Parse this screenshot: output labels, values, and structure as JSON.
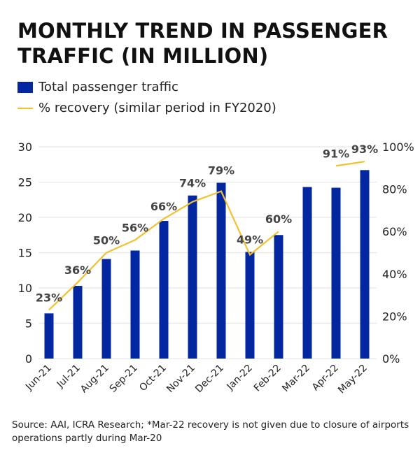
{
  "chart_data": {
    "type": "bar+line",
    "title": "MONTHLY TREND IN PASSENGER TRAFFIC (IN MILLION)",
    "categories": [
      "Jun-21",
      "Jul-21",
      "Aug-21",
      "Sep-21",
      "Oct-21",
      "Nov-21",
      "Dec-21",
      "Jan-22",
      "Feb-22",
      "Mar-22",
      "Apr-22",
      "May-22"
    ],
    "series": [
      {
        "name": "Total passenger traffic",
        "type": "bar",
        "axis": "left",
        "color": "#0327a0",
        "values": [
          6.4,
          10.3,
          14.1,
          15.3,
          19.5,
          23.1,
          24.9,
          15.1,
          17.5,
          24.3,
          24.2,
          26.7
        ]
      },
      {
        "name": "% recovery (similar period in FY2020)",
        "type": "line",
        "axis": "right",
        "color": "#f2c12e",
        "values": [
          23,
          36,
          50,
          56,
          66,
          74,
          79,
          49,
          60,
          null,
          91,
          93
        ],
        "labels": [
          "23%",
          "36%",
          "50%",
          "56%",
          "66%",
          "74%",
          "79%",
          "49%",
          "60%",
          "",
          "91%",
          "93%"
        ]
      }
    ],
    "y_left": {
      "range": [
        0,
        30
      ],
      "ticks": [
        "0",
        "5",
        "10",
        "15",
        "20",
        "25",
        "30"
      ]
    },
    "y_right": {
      "range": [
        0,
        100
      ],
      "ticks": [
        "0%",
        "20%",
        "40%",
        "60%",
        "80%",
        "100%"
      ]
    },
    "grid": true,
    "legend_position": "top-left"
  },
  "source": "Source: AAI, ICRA Research; *Mar-22 recovery is not given due to closure of airports operations partly during Mar-20"
}
